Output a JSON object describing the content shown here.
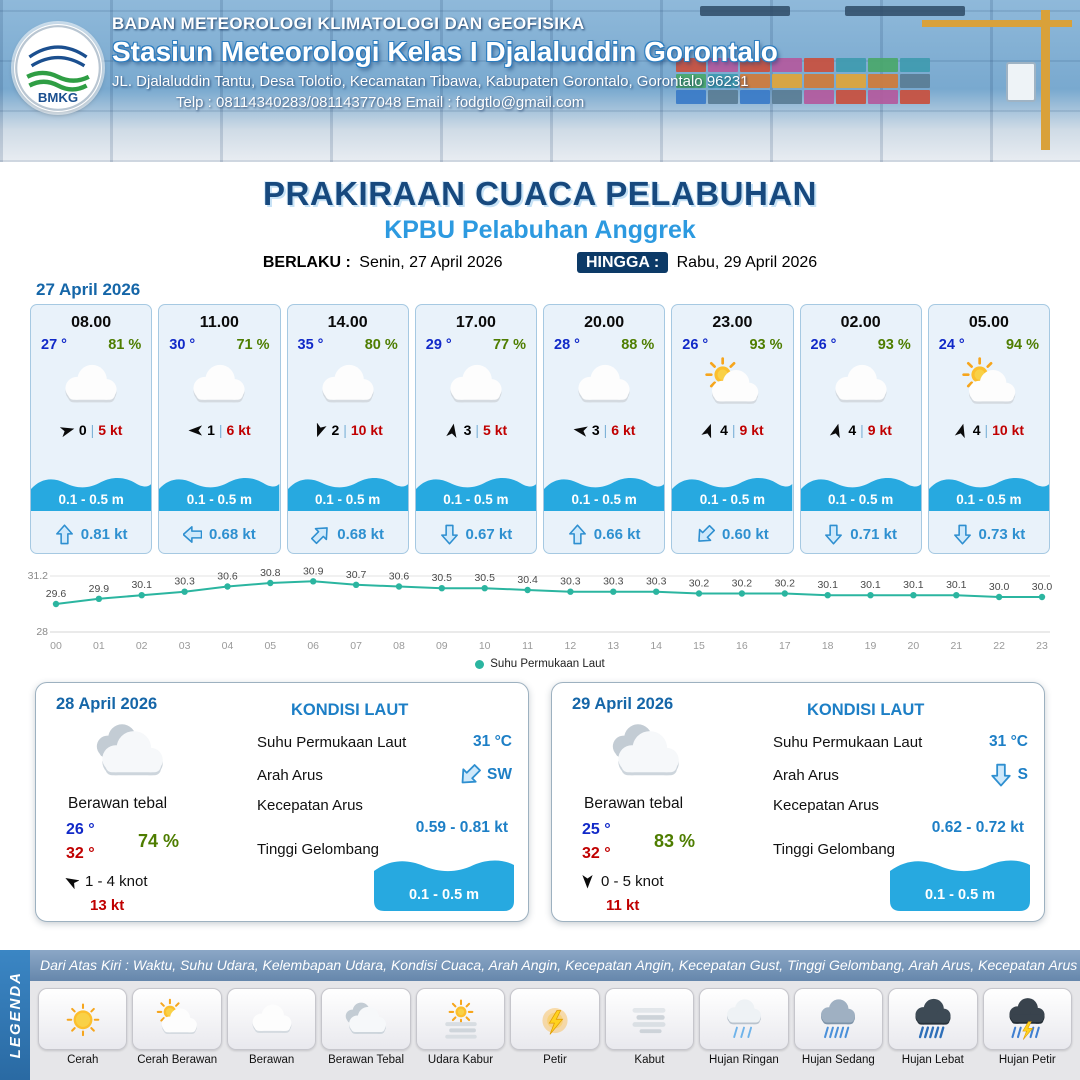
{
  "header": {
    "org": "BADAN METEOROLOGI KLIMATOLOGI DAN GEOFISIKA",
    "station": "Stasiun Meteorologi Kelas I Djalaluddin Gorontalo",
    "address": "JL. Djalaluddin Tantu, Desa Tolotio, Kecamatan Tibawa, Kabupaten Gorontalo, Gorontalo 96231",
    "contact": "Telp : 08114340283/08114377048 Email : fodgtlo@gmail.com",
    "logo_text": "BMKG"
  },
  "title": {
    "main": "PRAKIRAAN CUACA PELABUHAN",
    "sub": "KPBU Pelabuhan Anggrek",
    "berlaku_label": "BERLAKU :",
    "berlaku_value": "Senin, 27 April 2026",
    "hingga_label": "HINGGA :",
    "hingga_value": "Rabu, 29 April 2026"
  },
  "forecast": {
    "date": "27 April 2026",
    "cards": [
      {
        "time": "08.00",
        "temp": "27 °",
        "rh": "81 %",
        "icon": "berawan",
        "wind_dir_deg": 75,
        "wind_speed": "0",
        "gust": "5 kt",
        "wave": "0.1 - 0.5 m",
        "current_dir_deg": 0,
        "current_speed": "0.81 kt"
      },
      {
        "time": "11.00",
        "temp": "30 °",
        "rh": "71 %",
        "icon": "berawan",
        "wind_dir_deg": 270,
        "wind_speed": "1",
        "gust": "6 kt",
        "wave": "0.1 - 0.5 m",
        "current_dir_deg": 270,
        "current_speed": "0.68 kt"
      },
      {
        "time": "14.00",
        "temp": "35 °",
        "rh": "80 %",
        "icon": "berawan",
        "wind_dir_deg": 200,
        "wind_speed": "2",
        "gust": "10 kt",
        "wave": "0.1 - 0.5 m",
        "current_dir_deg": 45,
        "current_speed": "0.68 kt"
      },
      {
        "time": "17.00",
        "temp": "29 °",
        "rh": "77 %",
        "icon": "berawan",
        "wind_dir_deg": 10,
        "wind_speed": "3",
        "gust": "5 kt",
        "wave": "0.1 - 0.5 m",
        "current_dir_deg": 180,
        "current_speed": "0.67 kt"
      },
      {
        "time": "20.00",
        "temp": "28 °",
        "rh": "88 %",
        "icon": "berawan",
        "wind_dir_deg": 280,
        "wind_speed": "3",
        "gust": "6 kt",
        "wave": "0.1 - 0.5 m",
        "current_dir_deg": 0,
        "current_speed": "0.66 kt"
      },
      {
        "time": "23.00",
        "temp": "26 °",
        "rh": "93 %",
        "icon": "cerah-berawan",
        "wind_dir_deg": 20,
        "wind_speed": "4",
        "gust": "9 kt",
        "wave": "0.1 - 0.5 m",
        "current_dir_deg": 225,
        "current_speed": "0.60 kt"
      },
      {
        "time": "02.00",
        "temp": "26 °",
        "rh": "93 %",
        "icon": "berawan",
        "wind_dir_deg": 15,
        "wind_speed": "4",
        "gust": "9 kt",
        "wave": "0.1 - 0.5 m",
        "current_dir_deg": 180,
        "current_speed": "0.71 kt"
      },
      {
        "time": "05.00",
        "temp": "24 °",
        "rh": "94 %",
        "icon": "cerah-berawan",
        "wind_dir_deg": 15,
        "wind_speed": "4",
        "gust": "10 kt",
        "wave": "0.1 - 0.5 m",
        "current_dir_deg": 180,
        "current_speed": "0.73 kt"
      }
    ]
  },
  "chart_data": {
    "type": "line",
    "x": [
      "00",
      "01",
      "02",
      "03",
      "04",
      "05",
      "06",
      "07",
      "08",
      "09",
      "10",
      "11",
      "12",
      "13",
      "14",
      "15",
      "16",
      "17",
      "18",
      "19",
      "20",
      "21",
      "22",
      "23"
    ],
    "series": [
      {
        "name": "Suhu Permukaan Laut",
        "values": [
          29.6,
          29.9,
          30.1,
          30.3,
          30.6,
          30.8,
          30.9,
          30.7,
          30.6,
          30.5,
          30.5,
          30.4,
          30.3,
          30.3,
          30.3,
          30.2,
          30.2,
          30.2,
          30.1,
          30.1,
          30.1,
          30.1,
          30.0,
          30.0
        ]
      }
    ],
    "ylim": [
      28,
      31.2
    ],
    "yticks": [
      28,
      31.2
    ],
    "color": "#2bb5a0",
    "grid": true,
    "legend_position": "bottom"
  },
  "daily": [
    {
      "date": "28 April 2026",
      "icon": "berawan-tebal",
      "condition": "Berawan tebal",
      "temp_min": "26 °",
      "temp_max": "32 °",
      "rh": "74 %",
      "wind_dir_deg": 300,
      "wind_range": "1 - 4 knot",
      "gust": "13 kt",
      "sea": {
        "title": "KONDISI LAUT",
        "sst_label": "Suhu Permukaan Laut",
        "sst": "31 °C",
        "current_dir_label": "Arah Arus",
        "current_dir": "SW",
        "current_dir_deg": 225,
        "current_speed_label": "Kecepatan Arus",
        "current_speed": "0.59 - 0.81 kt",
        "wave_label": "Tinggi Gelombang",
        "wave": "0.1 - 0.5 m"
      }
    },
    {
      "date": "29 April 2026",
      "icon": "berawan-tebal",
      "condition": "Berawan tebal",
      "temp_min": "25 °",
      "temp_max": "32 °",
      "rh": "83 %",
      "wind_dir_deg": 180,
      "wind_range": "0 - 5 knot",
      "gust": "11 kt",
      "sea": {
        "title": "KONDISI LAUT",
        "sst_label": "Suhu Permukaan Laut",
        "sst": "31 °C",
        "current_dir_label": "Arah Arus",
        "current_dir": "S",
        "current_dir_deg": 180,
        "current_speed_label": "Kecepatan Arus",
        "current_speed": "0.62 - 0.72 kt",
        "wave_label": "Tinggi Gelombang",
        "wave": "0.1 - 0.5 m"
      }
    }
  ],
  "legend": {
    "title": "LEGENDA",
    "note": "Dari Atas Kiri : Waktu, Suhu Udara, Kelembapan Udara, Kondisi Cuaca, Arah Angin, Kecepatan Angin, Kecepatan Gust, Tinggi Gelombang, Arah Arus, Kecepatan Arus",
    "items": [
      {
        "label": "Cerah",
        "icon": "cerah"
      },
      {
        "label": "Cerah Berawan",
        "icon": "cerah-berawan"
      },
      {
        "label": "Berawan",
        "icon": "berawan"
      },
      {
        "label": "Berawan Tebal",
        "icon": "berawan-tebal"
      },
      {
        "label": "Udara Kabur",
        "icon": "udara-kabur"
      },
      {
        "label": "Petir",
        "icon": "petir"
      },
      {
        "label": "Kabut",
        "icon": "kabut"
      },
      {
        "label": "Hujan Ringan",
        "icon": "hujan-ringan"
      },
      {
        "label": "Hujan Sedang",
        "icon": "hujan-sedang"
      },
      {
        "label": "Hujan Lebat",
        "icon": "hujan-lebat"
      },
      {
        "label": "Hujan Petir",
        "icon": "hujan-petir"
      }
    ]
  },
  "colors": {
    "navy": "#164a80",
    "accent_blue": "#2d9ae0",
    "wave_cyan": "#27a9e0",
    "humidity_green": "#4e7d00",
    "alert_red": "#c00000",
    "temp_blue": "#1129c8",
    "chart_teal": "#2bb5a0"
  }
}
